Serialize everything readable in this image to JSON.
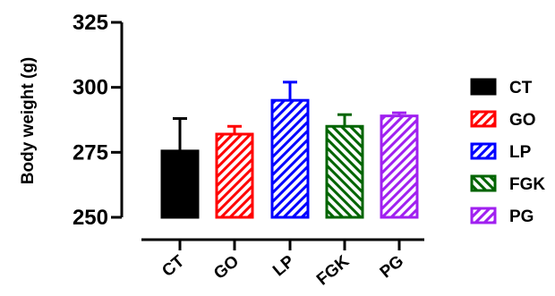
{
  "chart_data": {
    "type": "bar",
    "title": "",
    "xlabel": "",
    "ylabel": "Body weight (g)",
    "ylim": [
      250,
      325
    ],
    "yticks": [
      250,
      275,
      300,
      325
    ],
    "categories": [
      "CT",
      "GO",
      "LP",
      "FGK",
      "PG"
    ],
    "values": [
      275.5,
      282,
      295,
      285,
      289
    ],
    "errors": [
      12.5,
      3,
      7,
      4.5,
      1.2
    ],
    "colors": [
      "#000000",
      "#ff0000",
      "#0000ff",
      "#006400",
      "#a020f0"
    ],
    "fill_styles": [
      "solid",
      "hatched",
      "hatched",
      "hatched-reverse",
      "hatched"
    ],
    "legend": {
      "position": "right",
      "entries": [
        "CT",
        "GO",
        "LP",
        "FGK",
        "PG"
      ]
    },
    "grid": false
  }
}
